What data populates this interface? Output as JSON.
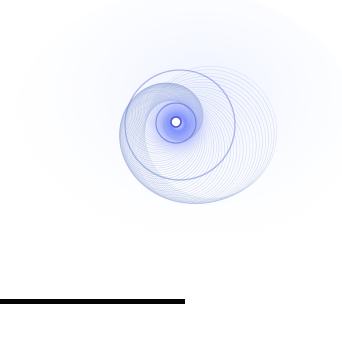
{
  "artwork": {
    "subject": "spiral-curve-pattern",
    "colors": {
      "background": "#ffffff",
      "line_primary": "#8fa3dc",
      "line_secondary": "#b3b7e8",
      "line_green_tint": "#9fd0c0",
      "core_glow": "#5a63d8",
      "core_highlight": "#eef2ff",
      "baseline": "#050505"
    }
  }
}
